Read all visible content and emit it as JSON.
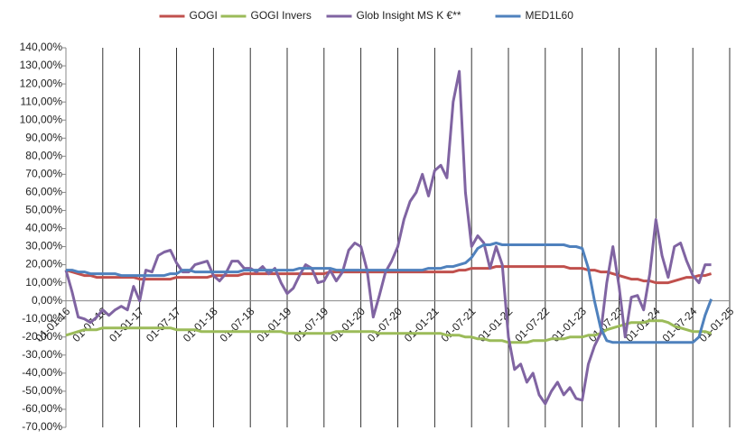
{
  "chart_data": {
    "type": "line",
    "x": [
      "01-01-16",
      "01-02-16",
      "01-03-16",
      "01-04-16",
      "01-05-16",
      "01-06-16",
      "01-07-16",
      "01-08-16",
      "01-09-16",
      "01-10-16",
      "01-11-16",
      "01-12-16",
      "01-01-17",
      "01-02-17",
      "01-03-17",
      "01-04-17",
      "01-05-17",
      "01-06-17",
      "01-07-17",
      "01-08-17",
      "01-09-17",
      "01-10-17",
      "01-11-17",
      "01-12-17",
      "01-01-18",
      "01-02-18",
      "01-03-18",
      "01-04-18",
      "01-05-18",
      "01-06-18",
      "01-07-18",
      "01-08-18",
      "01-09-18",
      "01-10-18",
      "01-11-18",
      "01-12-18",
      "01-01-19",
      "01-02-19",
      "01-03-19",
      "01-04-19",
      "01-05-19",
      "01-06-19",
      "01-07-19",
      "01-08-19",
      "01-09-19",
      "01-10-19",
      "01-11-19",
      "01-12-19",
      "01-01-20",
      "01-02-20",
      "01-03-20",
      "01-04-20",
      "01-05-20",
      "01-06-20",
      "01-07-20",
      "01-08-20",
      "01-09-20",
      "01-10-20",
      "01-11-20",
      "01-12-20",
      "01-01-21",
      "01-02-21",
      "01-03-21",
      "01-04-21",
      "01-05-21",
      "01-06-21",
      "01-07-21",
      "01-08-21",
      "01-09-21",
      "01-10-21",
      "01-11-21",
      "01-12-21",
      "01-01-22",
      "01-02-22",
      "01-03-22",
      "01-04-22",
      "01-05-22",
      "01-06-22",
      "01-07-22",
      "01-08-22",
      "01-09-22",
      "01-10-22",
      "01-11-22",
      "01-12-22",
      "01-01-23",
      "01-02-23",
      "01-03-23",
      "01-04-23",
      "01-05-23",
      "01-06-23",
      "01-07-23",
      "01-08-23",
      "01-09-23",
      "01-10-23",
      "01-11-23",
      "01-12-23",
      "01-01-24",
      "01-02-24",
      "01-03-24",
      "01-04-24",
      "01-05-24",
      "01-06-24",
      "01-07-24",
      "01-08-24",
      "01-09-24",
      "01-10-24"
    ],
    "series": [
      {
        "name": "GOGI",
        "color": "#c0504d",
        "values": [
          17,
          16,
          15,
          14,
          14,
          13,
          13,
          13,
          13,
          13,
          13,
          13,
          12,
          12,
          12,
          12,
          12,
          12,
          13,
          13,
          13,
          13,
          13,
          13,
          14,
          14,
          14,
          14,
          14,
          15,
          15,
          15,
          15,
          15,
          15,
          15,
          15,
          15,
          15,
          15,
          15,
          15,
          15,
          16,
          16,
          16,
          16,
          16,
          16,
          16,
          16,
          16,
          16,
          16,
          16,
          16,
          16,
          16,
          16,
          16,
          16,
          16,
          16,
          16,
          17,
          17,
          18,
          18,
          18,
          18,
          19,
          19,
          19,
          19,
          19,
          19,
          19,
          19,
          19,
          19,
          19,
          19,
          18,
          18,
          18,
          17,
          17,
          16,
          16,
          15,
          14,
          13,
          12,
          12,
          11,
          11,
          10,
          10,
          10,
          11,
          12,
          13,
          13,
          14,
          14,
          15
        ]
      },
      {
        "name": "GOGI Invers",
        "color": "#9bbb59",
        "values": [
          -19,
          -18,
          -17,
          -16,
          -16,
          -16,
          -15,
          -15,
          -15,
          -15,
          -15,
          -15,
          -15,
          -15,
          -15,
          -15,
          -15,
          -15,
          -16,
          -16,
          -16,
          -16,
          -17,
          -17,
          -17,
          -17,
          -17,
          -17,
          -17,
          -17,
          -17,
          -17,
          -17,
          -17,
          -17,
          -17,
          -18,
          -18,
          -18,
          -18,
          -18,
          -18,
          -18,
          -18,
          -17,
          -17,
          -17,
          -17,
          -17,
          -17,
          -17,
          -18,
          -18,
          -18,
          -18,
          -18,
          -18,
          -18,
          -18,
          -18,
          -18,
          -18,
          -19,
          -19,
          -19,
          -20,
          -20,
          -21,
          -21,
          -22,
          -22,
          -22,
          -23,
          -23,
          -23,
          -23,
          -22,
          -22,
          -22,
          -21,
          -21,
          -21,
          -20,
          -20,
          -20,
          -19,
          -19,
          -18,
          -16,
          -15,
          -14,
          -13,
          -12,
          -12,
          -12,
          -11,
          -11,
          -11,
          -12,
          -14,
          -15,
          -16,
          -17,
          -17,
          -17,
          -18
        ]
      },
      {
        "name": "Glob Insight MS K €**",
        "color": "#8064a2",
        "values": [
          17,
          5,
          -9,
          -10,
          -12,
          -9,
          -5,
          -8,
          -5,
          -3,
          -5,
          8,
          0,
          17,
          16,
          25,
          27,
          28,
          21,
          16,
          16,
          20,
          21,
          22,
          14,
          11,
          15,
          22,
          22,
          18,
          18,
          16,
          19,
          15,
          18,
          10,
          4,
          7,
          14,
          20,
          18,
          10,
          11,
          17,
          11,
          16,
          28,
          32,
          30,
          17,
          -9,
          3,
          16,
          22,
          30,
          45,
          55,
          60,
          70,
          58,
          72,
          75,
          68,
          110,
          127,
          60,
          30,
          36,
          32,
          18,
          30,
          20,
          -20,
          -38,
          -35,
          -45,
          -40,
          -52,
          -57,
          -50,
          -45,
          -52,
          -48,
          -54,
          -55,
          -35,
          -25,
          -18,
          10,
          30,
          8,
          -20,
          2,
          3,
          -5,
          15,
          45,
          25,
          13,
          30,
          32,
          22,
          14,
          10,
          20,
          20
        ]
      },
      {
        "name": "MED1L60",
        "color": "#4f81bd",
        "values": [
          17,
          17,
          16,
          16,
          15,
          15,
          15,
          15,
          15,
          14,
          14,
          14,
          14,
          14,
          14,
          14,
          14,
          15,
          15,
          17,
          17,
          16,
          16,
          16,
          16,
          16,
          16,
          16,
          16,
          17,
          17,
          17,
          17,
          17,
          17,
          17,
          17,
          17,
          18,
          18,
          18,
          18,
          18,
          18,
          17,
          17,
          17,
          17,
          17,
          17,
          17,
          17,
          17,
          17,
          17,
          17,
          17,
          17,
          17,
          18,
          18,
          18,
          19,
          19,
          20,
          21,
          24,
          29,
          31,
          31,
          32,
          31,
          31,
          31,
          31,
          31,
          31,
          31,
          31,
          31,
          31,
          31,
          30,
          30,
          29,
          18,
          0,
          -15,
          -22,
          -23,
          -23,
          -23,
          -23,
          -23,
          -23,
          -23,
          -23,
          -23,
          -23,
          -23,
          -23,
          -23,
          -23,
          -20,
          -8,
          1
        ]
      }
    ],
    "xlim": [
      "01-01-16",
      "01-01-25"
    ],
    "xticks": [
      "01-01-16",
      "01-07-16",
      "01-01-17",
      "01-07-17",
      "01-01-18",
      "01-07-18",
      "01-01-19",
      "01-07-19",
      "01-01-20",
      "01-07-20",
      "01-01-21",
      "01-07-21",
      "01-01-22",
      "01-07-22",
      "01-01-23",
      "01-07-23",
      "01-01-24",
      "01-07-24",
      "01-01-25"
    ],
    "ylim": [
      -70,
      140
    ],
    "yticks": [
      {
        "value": -70,
        "label": "-70,00%"
      },
      {
        "value": -60,
        "label": "-60,00%"
      },
      {
        "value": -50,
        "label": "-50,00%"
      },
      {
        "value": -40,
        "label": "-40,00%"
      },
      {
        "value": -30,
        "label": "-30,00%"
      },
      {
        "value": -20,
        "label": "-20,00%"
      },
      {
        "value": -10,
        "label": "-10,00%"
      },
      {
        "value": 0,
        "label": "0,00%"
      },
      {
        "value": 10,
        "label": "10,00%"
      },
      {
        "value": 20,
        "label": "20,00%"
      },
      {
        "value": 30,
        "label": "30,00%"
      },
      {
        "value": 40,
        "label": "40,00%"
      },
      {
        "value": 50,
        "label": "50,00%"
      },
      {
        "value": 60,
        "label": "60,00%"
      },
      {
        "value": 70,
        "label": "70,00%"
      },
      {
        "value": 80,
        "label": "80,00%"
      },
      {
        "value": 90,
        "label": "90,00%"
      },
      {
        "value": 100,
        "label": "100,00%"
      },
      {
        "value": 110,
        "label": "110,00%"
      },
      {
        "value": 120,
        "label": "120,00%"
      },
      {
        "value": 130,
        "label": "130,00%"
      },
      {
        "value": 140,
        "label": "140,00%"
      }
    ],
    "grid": "x",
    "legend": "top"
  }
}
